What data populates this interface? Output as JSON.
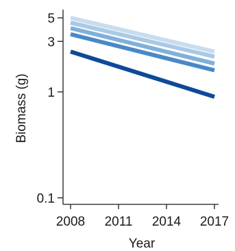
{
  "chart_data": {
    "type": "line",
    "title": "",
    "xlabel": "Year",
    "ylabel": "Biomass (g)",
    "y_scale": "log",
    "xlim": [
      2008,
      2017
    ],
    "ylim": [
      0.1,
      5
    ],
    "x_ticks": [
      2008,
      2011,
      2014,
      2017
    ],
    "x_tick_labels": [
      "2008",
      "2011",
      "2014",
      "2017"
    ],
    "y_ticks": [
      0.1,
      1,
      3,
      5
    ],
    "y_tick_labels": [
      "0.1",
      "1",
      "3",
      "5"
    ],
    "grid": false,
    "legend": "none",
    "x": [
      2008,
      2017
    ],
    "series": [
      {
        "color": "#c8dcef",
        "values": [
          5.0,
          2.4
        ]
      },
      {
        "color": "#a9c9e6",
        "values": [
          4.5,
          2.15
        ]
      },
      {
        "color": "#7fb0da",
        "values": [
          4.0,
          1.85
        ]
      },
      {
        "color": "#4a88c7",
        "values": [
          3.5,
          1.6
        ]
      },
      {
        "color": "#0d4a98",
        "values": [
          2.4,
          0.9
        ]
      }
    ]
  }
}
